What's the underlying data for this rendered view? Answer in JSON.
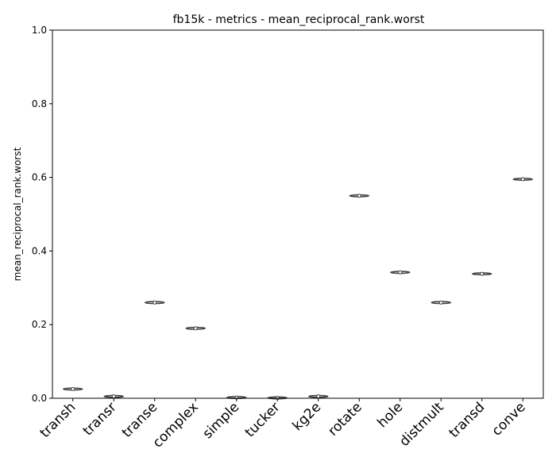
{
  "chart_data": {
    "type": "violin",
    "title": "fb15k - metrics - mean_reciprocal_rank.worst",
    "xlabel": "",
    "ylabel": "mean_reciprocal_rank.worst",
    "ylim": [
      0,
      1.0
    ],
    "yticks": [
      "0.0",
      "0.2",
      "0.4",
      "0.6",
      "0.8",
      "1.0"
    ],
    "categories": [
      "transh",
      "transr",
      "transe",
      "complex",
      "simple",
      "tucker",
      "kg2e",
      "rotate",
      "hole",
      "distmult",
      "transd",
      "conve"
    ],
    "values": [
      0.025,
      0.005,
      0.26,
      0.19,
      0.002,
      0.001,
      0.005,
      0.55,
      0.342,
      0.26,
      0.338,
      0.595
    ],
    "grid": false,
    "colors": {
      "violin_stroke": "#3f3f3f",
      "violin_fill": "#ffffff",
      "axis": "#000000"
    }
  }
}
